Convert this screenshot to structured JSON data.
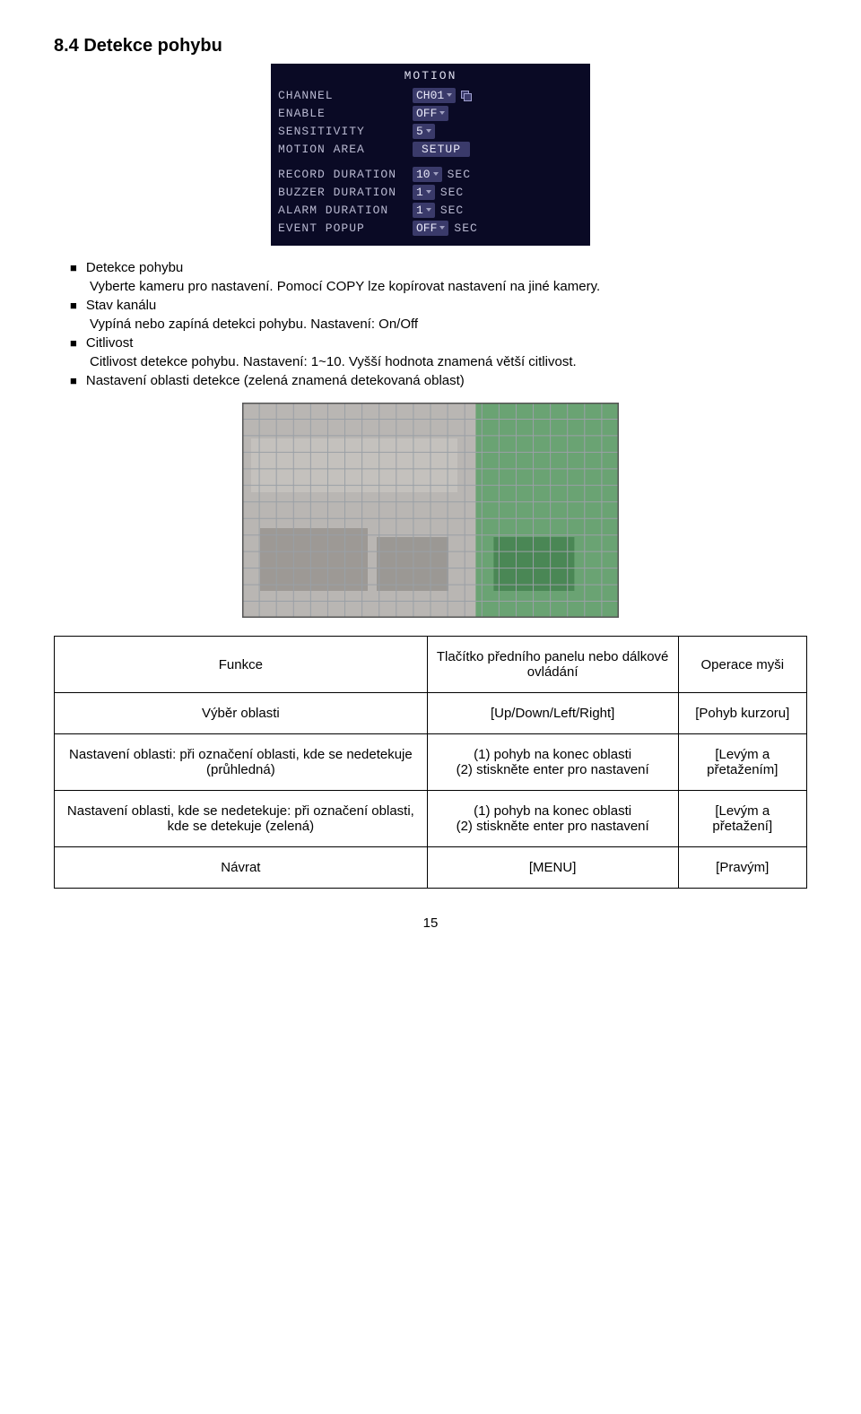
{
  "section_title": "8.4  Detekce pohybu",
  "motion_panel": {
    "title": "MOTION",
    "rows": [
      {
        "label": "CHANNEL",
        "value": "CH01",
        "type": "dd",
        "copy": true
      },
      {
        "label": "ENABLE",
        "value": "OFF",
        "type": "dd"
      },
      {
        "label": "SENSITIVITY",
        "value": "5",
        "type": "dd"
      },
      {
        "label": "MOTION AREA",
        "value": "SETUP",
        "type": "btn"
      },
      {
        "label": "RECORD DURATION",
        "value": "10",
        "type": "dd",
        "unit": "SEC",
        "gap": true
      },
      {
        "label": "BUZZER DURATION",
        "value": "1",
        "type": "dd",
        "unit": "SEC"
      },
      {
        "label": "ALARM  DURATION",
        "value": "1",
        "type": "dd",
        "unit": "SEC"
      },
      {
        "label": "EVENT POPUP",
        "value": "OFF",
        "type": "dd",
        "unit": "SEC"
      }
    ]
  },
  "bullets": [
    {
      "head": "Detekce pohybu",
      "lines": [
        "Vyberte kameru pro nastavení. Pomocí COPY lze kopírovat nastavení na jiné kamery."
      ]
    },
    {
      "head": "Stav kanálu",
      "lines": [
        "Vypíná nebo zapíná detekci pohybu. Nastavení: On/Off"
      ]
    },
    {
      "head": "Citlivost",
      "lines": [
        "Citlivost detekce pohybu. Nastavení: 1~10. Vyšší hodnota znamená větší citlivost."
      ]
    },
    {
      "head": "Nastavení oblasti detekce (zelená znamená detekovaná oblast)",
      "lines": []
    }
  ],
  "figure": {
    "bg_left": "#b9b6b3",
    "bg_right": "#3f9a52",
    "grid_color": "#9aa0a6",
    "split_x": 0.62,
    "cols": 22,
    "rows": 13
  },
  "table": {
    "headers": [
      "Funkce",
      "Tlačítko předního panelu nebo dálkové ovládání",
      "Operace myši"
    ],
    "rows": [
      [
        "Výběr oblasti",
        "[Up/Down/Left/Right]",
        "[Pohyb kurzoru]"
      ],
      [
        "Nastavení oblasti: při označení oblasti, kde se nedetekuje (průhledná)",
        "(1) pohyb na konec oblasti\n(2) stiskněte enter pro nastavení",
        "[Levým a přetažením]"
      ],
      [
        "Nastavení oblasti, kde se nedetekuje: při označení oblasti, kde se detekuje (zelená)",
        "(1) pohyb na konec oblasti\n(2) stiskněte enter pro nastavení",
        "[Levým a přetažení]"
      ],
      [
        "Návrat",
        "[MENU]",
        "[Pravým]"
      ]
    ]
  },
  "page_number": "15"
}
